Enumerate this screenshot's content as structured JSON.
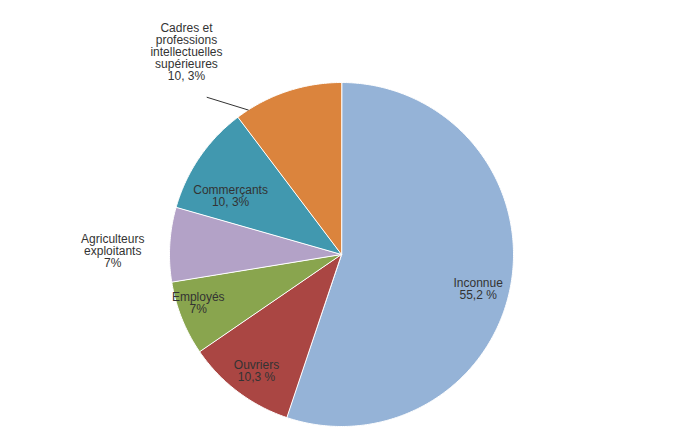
{
  "chart_data": {
    "type": "pie",
    "categories": [
      "Inconnue",
      "Ouvriers",
      "Employés",
      "Agriculteurs exploitants",
      "Commerçants",
      "Cadres et professions intellectuelles supérieures"
    ],
    "values": [
      55.2,
      10.3,
      7,
      7,
      10.3,
      10.3
    ],
    "value_labels": [
      "55,2 %",
      "10,3 %",
      "7%",
      "7%",
      "10, 3%",
      "10, 3%"
    ],
    "colors": [
      "#95b3d7",
      "#aa4643",
      "#89a54e",
      "#b3a2c7",
      "#4198af",
      "#db843d"
    ],
    "data_labels": true
  }
}
